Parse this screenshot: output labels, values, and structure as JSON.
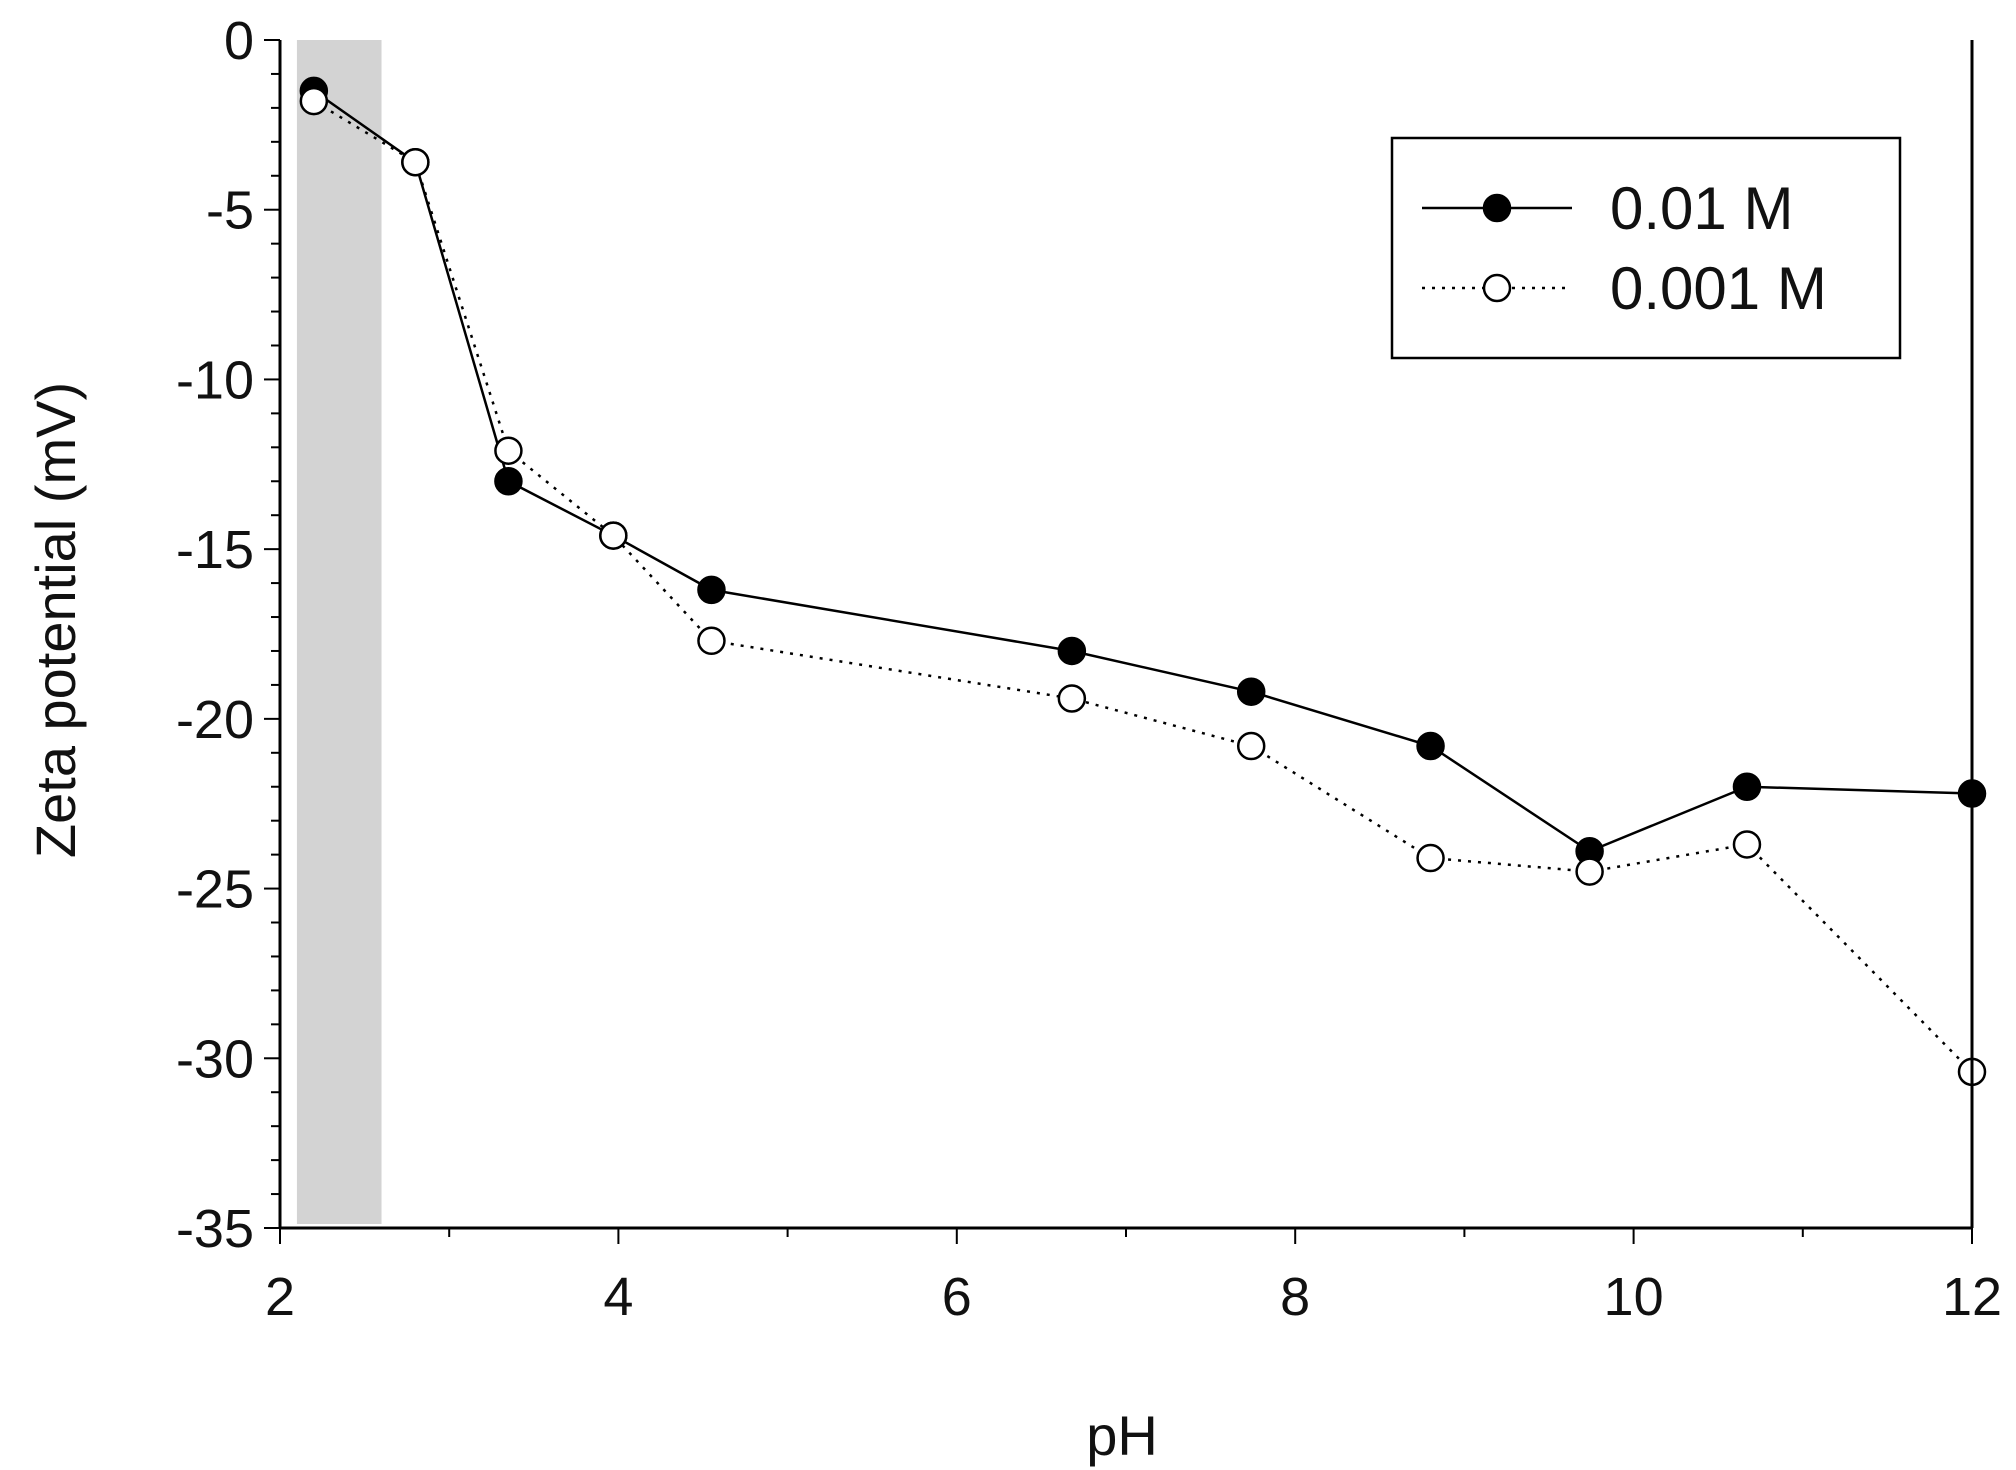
{
  "chart_data": {
    "type": "line",
    "xlabel": "pH",
    "ylabel": "Zeta potential (mV)",
    "xlim": [
      2,
      12
    ],
    "ylim": [
      -35,
      0
    ],
    "x_ticks": [
      "2",
      "4",
      "6",
      "8",
      "10",
      "12"
    ],
    "y_ticks": [
      "0",
      "-5",
      "-10",
      "-15",
      "-20",
      "-25",
      "-30",
      "-35"
    ],
    "shaded_region": {
      "x_range": [
        2.1,
        2.6
      ],
      "color": "#d3d3d3"
    },
    "legend": {
      "placement": "top-right"
    },
    "series": [
      {
        "name": "0.01 M",
        "marker": "filled-circle",
        "line": "solid",
        "x": [
          2.2,
          2.8,
          3.35,
          3.97,
          4.55,
          6.68,
          7.74,
          8.8,
          9.74,
          10.67,
          12.0
        ],
        "y": [
          -1.5,
          -3.6,
          -13.0,
          -14.6,
          -16.2,
          -18.0,
          -19.2,
          -20.8,
          -23.9,
          -22.0,
          -22.2
        ]
      },
      {
        "name": "0.001 M",
        "marker": "open-circle",
        "line": "dotted",
        "x": [
          2.2,
          2.8,
          3.35,
          3.97,
          4.55,
          6.68,
          7.74,
          8.8,
          9.74,
          10.67,
          12.0
        ],
        "y": [
          -1.8,
          -3.6,
          -12.1,
          -14.6,
          -17.7,
          -19.4,
          -20.8,
          -24.1,
          -24.5,
          -23.7,
          -30.4
        ]
      }
    ]
  }
}
